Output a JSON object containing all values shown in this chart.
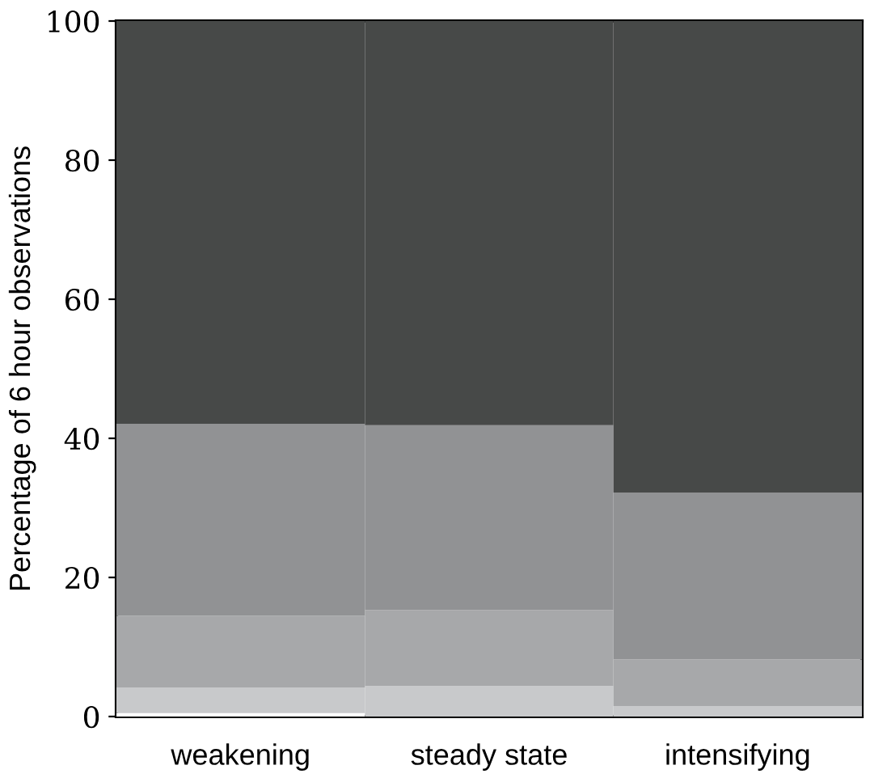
{
  "chart_data": {
    "type": "bar",
    "stacked": true,
    "ylabel": "Percentage of 6 hour observations",
    "categories": [
      "weakening",
      "steady state",
      "intensifying"
    ],
    "series": [
      {
        "color": "#ffffff",
        "values": [
          0.5,
          0,
          0
        ]
      },
      {
        "color": "#c8c9cb",
        "values": [
          3.7,
          4.4,
          1.5
        ]
      },
      {
        "color": "#a7a8aa",
        "values": [
          10.3,
          10.9,
          6.7
        ]
      },
      {
        "color": "#919294",
        "values": [
          27.6,
          26.6,
          24.0
        ]
      },
      {
        "color": "#474948",
        "values": [
          57.9,
          58.1,
          67.8
        ]
      }
    ],
    "ylim": [
      0,
      100
    ],
    "yticks": [
      0,
      20,
      40,
      60,
      80,
      100
    ],
    "grid": false,
    "legend": false
  }
}
